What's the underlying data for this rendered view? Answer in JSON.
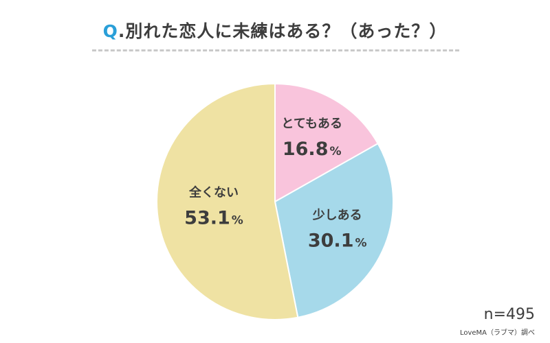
{
  "title": {
    "prefix": "Q",
    "text": ".別れた恋人に未練はある？（あった？）"
  },
  "chart_data": {
    "type": "pie",
    "unit": "%",
    "start": "12 o'clock, clockwise",
    "slices": [
      {
        "label": "とてもある",
        "value": 16.8,
        "color": "#f9c4dc"
      },
      {
        "label": "少しある",
        "value": 30.1,
        "color": "#a6d9ea"
      },
      {
        "label": "全くない",
        "value": 53.1,
        "color": "#efe2a3"
      }
    ]
  },
  "sample_size": "n=495",
  "source": "LoveMA（ラブマ）調べ"
}
